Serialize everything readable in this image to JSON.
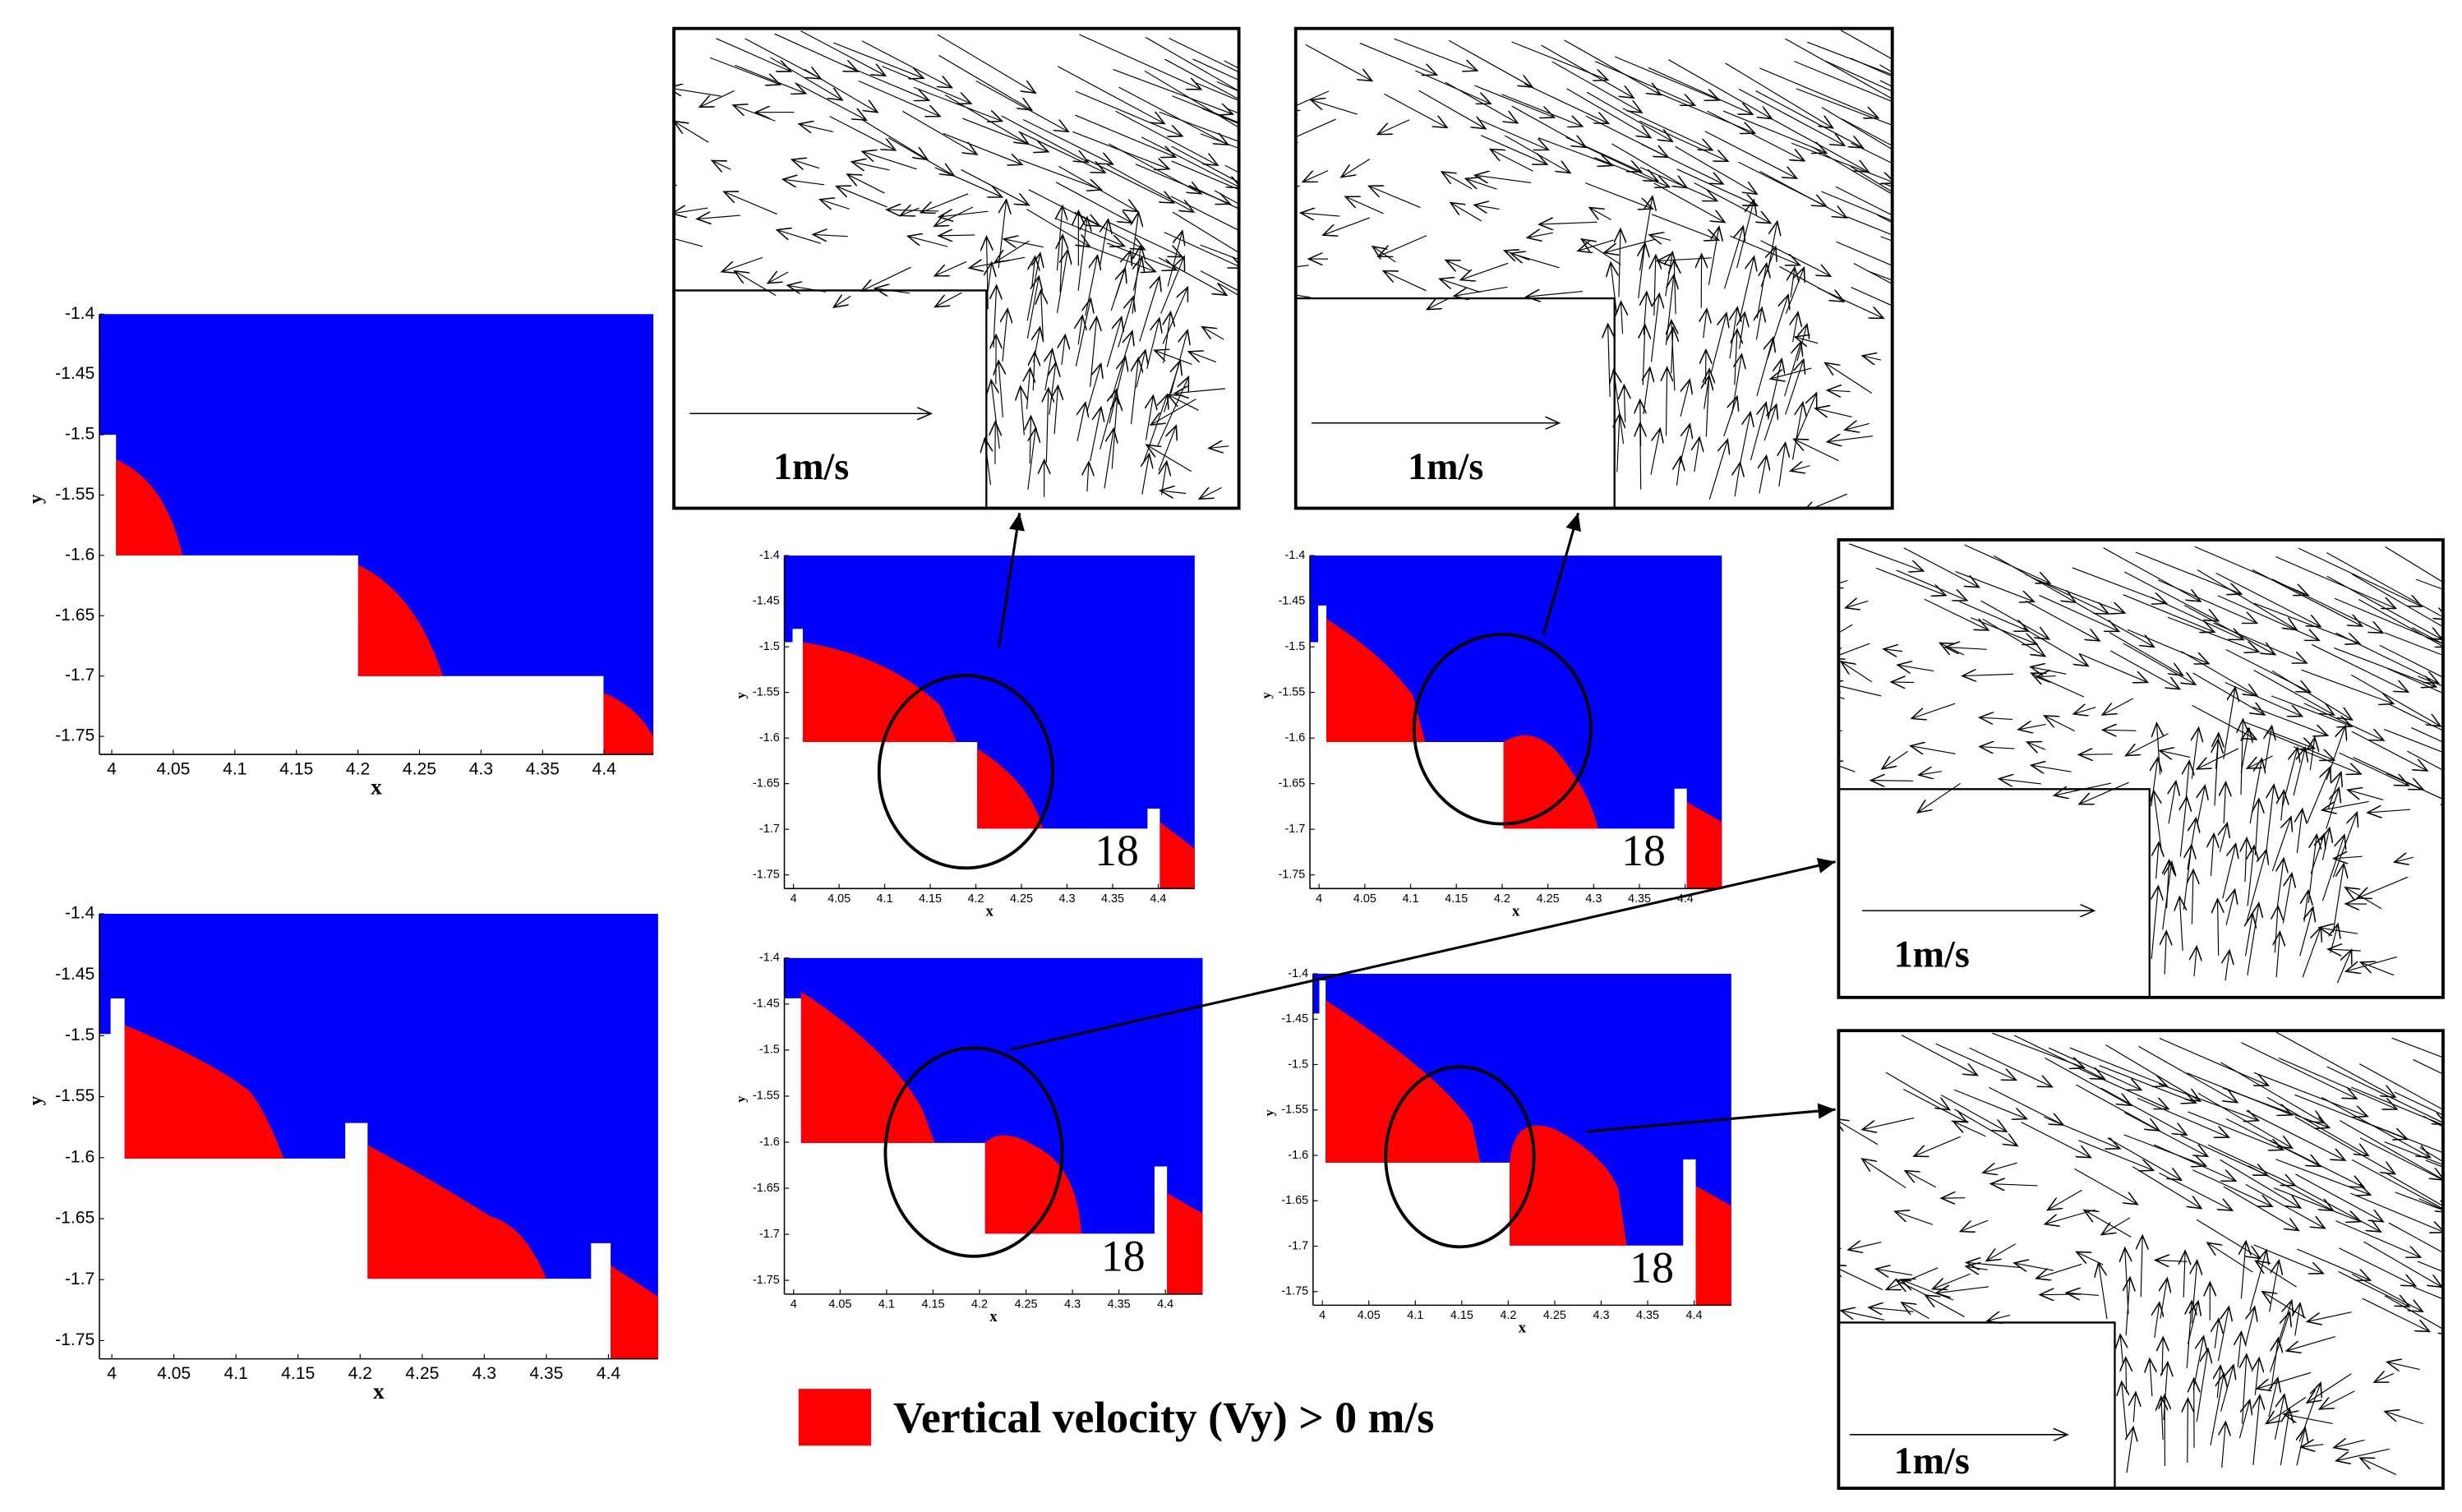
{
  "chart_data": [
    {
      "type": "contour",
      "xlabel": "x",
      "ylabel": "y",
      "xlim": [
        3.99,
        4.44
      ],
      "ylim": [
        -1.765,
        -1.4
      ],
      "xticks": [
        4,
        4.05,
        4.1,
        4.15,
        4.2,
        4.25,
        4.3,
        4.35,
        4.4
      ],
      "yticks": [
        -1.4,
        -1.45,
        -1.5,
        -1.55,
        -1.6,
        -1.65,
        -1.7,
        -1.75
      ],
      "flow_color": "#0000ff",
      "positive_color": "#ff0000"
    },
    {
      "type": "contour",
      "xlabel": "x",
      "ylabel": "y",
      "xlim": [
        3.99,
        4.44
      ],
      "ylim": [
        -1.765,
        -1.4
      ],
      "xticks": [
        4,
        4.05,
        4.1,
        4.15,
        4.2,
        4.25,
        4.3,
        4.35,
        4.4
      ],
      "yticks": [
        -1.4,
        -1.45,
        -1.5,
        -1.55,
        -1.6,
        -1.65,
        -1.7,
        -1.75
      ],
      "flow_color": "#0000ff",
      "positive_color": "#ff0000"
    },
    {
      "type": "contour",
      "xlabel": "x",
      "ylabel": "y",
      "xlim": [
        3.99,
        4.44
      ],
      "ylim": [
        -1.765,
        -1.4
      ],
      "xticks": [
        4,
        4.05,
        4.1,
        4.15,
        4.2,
        4.25,
        4.3,
        4.35,
        4.4
      ],
      "yticks": [
        -1.4,
        -1.45,
        -1.5,
        -1.55,
        -1.6,
        -1.65,
        -1.7,
        -1.75
      ],
      "flow_color": "#0000ff",
      "positive_color": "#ff0000",
      "annotation": "18"
    },
    {
      "type": "contour",
      "xlabel": "x",
      "ylabel": "y",
      "xlim": [
        3.99,
        4.44
      ],
      "ylim": [
        -1.765,
        -1.4
      ],
      "xticks": [
        4,
        4.05,
        4.1,
        4.15,
        4.2,
        4.25,
        4.3,
        4.35,
        4.4
      ],
      "yticks": [
        -1.4,
        -1.45,
        -1.5,
        -1.55,
        -1.6,
        -1.65,
        -1.7,
        -1.75
      ],
      "flow_color": "#0000ff",
      "positive_color": "#ff0000",
      "annotation": "18"
    },
    {
      "type": "contour",
      "xlabel": "x",
      "ylabel": "y",
      "xlim": [
        3.99,
        4.44
      ],
      "ylim": [
        -1.765,
        -1.4
      ],
      "xticks": [
        4,
        4.05,
        4.1,
        4.15,
        4.2,
        4.25,
        4.3,
        4.35,
        4.4
      ],
      "yticks": [
        -1.4,
        -1.45,
        -1.5,
        -1.55,
        -1.6,
        -1.65,
        -1.7,
        -1.75
      ],
      "flow_color": "#0000ff",
      "positive_color": "#ff0000",
      "annotation": "18"
    },
    {
      "type": "contour",
      "xlabel": "x",
      "ylabel": "y",
      "xlim": [
        3.99,
        4.44
      ],
      "ylim": [
        -1.765,
        -1.4
      ],
      "xticks": [
        4,
        4.05,
        4.1,
        4.15,
        4.2,
        4.25,
        4.3,
        4.35,
        4.4
      ],
      "yticks": [
        -1.4,
        -1.45,
        -1.5,
        -1.55,
        -1.6,
        -1.65,
        -1.7,
        -1.75
      ],
      "flow_color": "#0000ff",
      "positive_color": "#ff0000",
      "annotation": "18"
    }
  ],
  "insets": [
    {
      "scale_label": "1m/s"
    },
    {
      "scale_label": "1m/s"
    },
    {
      "scale_label": "1m/s"
    },
    {
      "scale_label": "1m/s"
    }
  ],
  "legend": {
    "label": "Vertical  velocity (Vy) > 0 m/s",
    "color": "#ff0000"
  }
}
